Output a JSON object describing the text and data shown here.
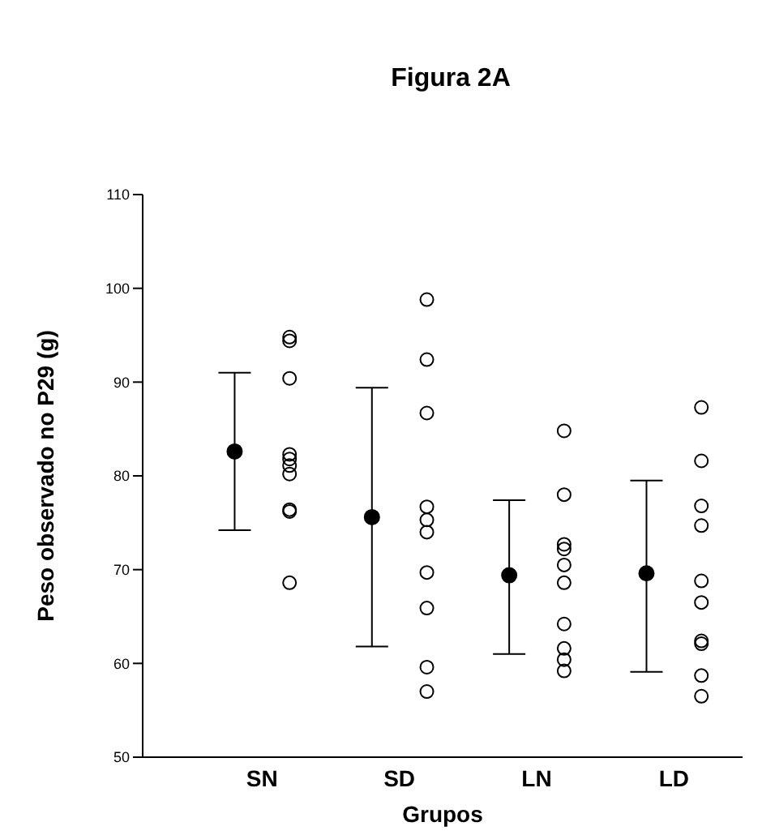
{
  "chart_data": {
    "type": "scatter",
    "title": "Figura 2A",
    "xlabel": "Grupos",
    "ylabel": "Peso observado no P29 (g)",
    "categories": [
      "SN",
      "SD",
      "LN",
      "LD"
    ],
    "series": [
      {
        "color": "#000000",
        "x": [
          "SN",
          "SD",
          "LN",
          "LD"
        ],
        "values": [
          82.6,
          75.6,
          69.4,
          69.6
        ],
        "errors": [
          [
            74.2,
            91.0
          ],
          [
            61.8,
            89.4
          ],
          [
            61.0,
            77.4
          ],
          [
            59.1,
            79.5
          ]
        ]
      },
      {
        "color": "#000000",
        "x": [
          "SN",
          "SN",
          "SN",
          "SN",
          "SN",
          "SN",
          "SN",
          "SN",
          "SN",
          "SN",
          "SD",
          "SD",
          "SD",
          "SD",
          "SD",
          "SD",
          "SD",
          "SD",
          "SD",
          "SD",
          "LN",
          "LN",
          "LN",
          "LN",
          "LN",
          "LN",
          "LN",
          "LN",
          "LN",
          "LN",
          "LD",
          "LD",
          "LD",
          "LD",
          "LD",
          "LD",
          "LD",
          "LD",
          "LD",
          "LD"
        ],
        "values": [
          94.8,
          94.4,
          90.4,
          82.3,
          81.8,
          81.1,
          80.2,
          76.4,
          76.2,
          68.6,
          98.8,
          92.4,
          86.7,
          76.7,
          75.3,
          74.0,
          69.7,
          65.9,
          59.6,
          57.0,
          84.8,
          78.0,
          72.7,
          72.2,
          70.5,
          68.6,
          64.2,
          61.6,
          60.4,
          59.2,
          87.3,
          81.6,
          76.8,
          74.7,
          68.8,
          66.5,
          62.4,
          62.1,
          58.7,
          56.5
        ]
      }
    ],
    "ylim": [
      50,
      110
    ],
    "yticks": [
      50,
      60,
      70,
      80,
      90,
      100,
      110
    ],
    "marker": "circle",
    "grid": false,
    "legend": false
  }
}
